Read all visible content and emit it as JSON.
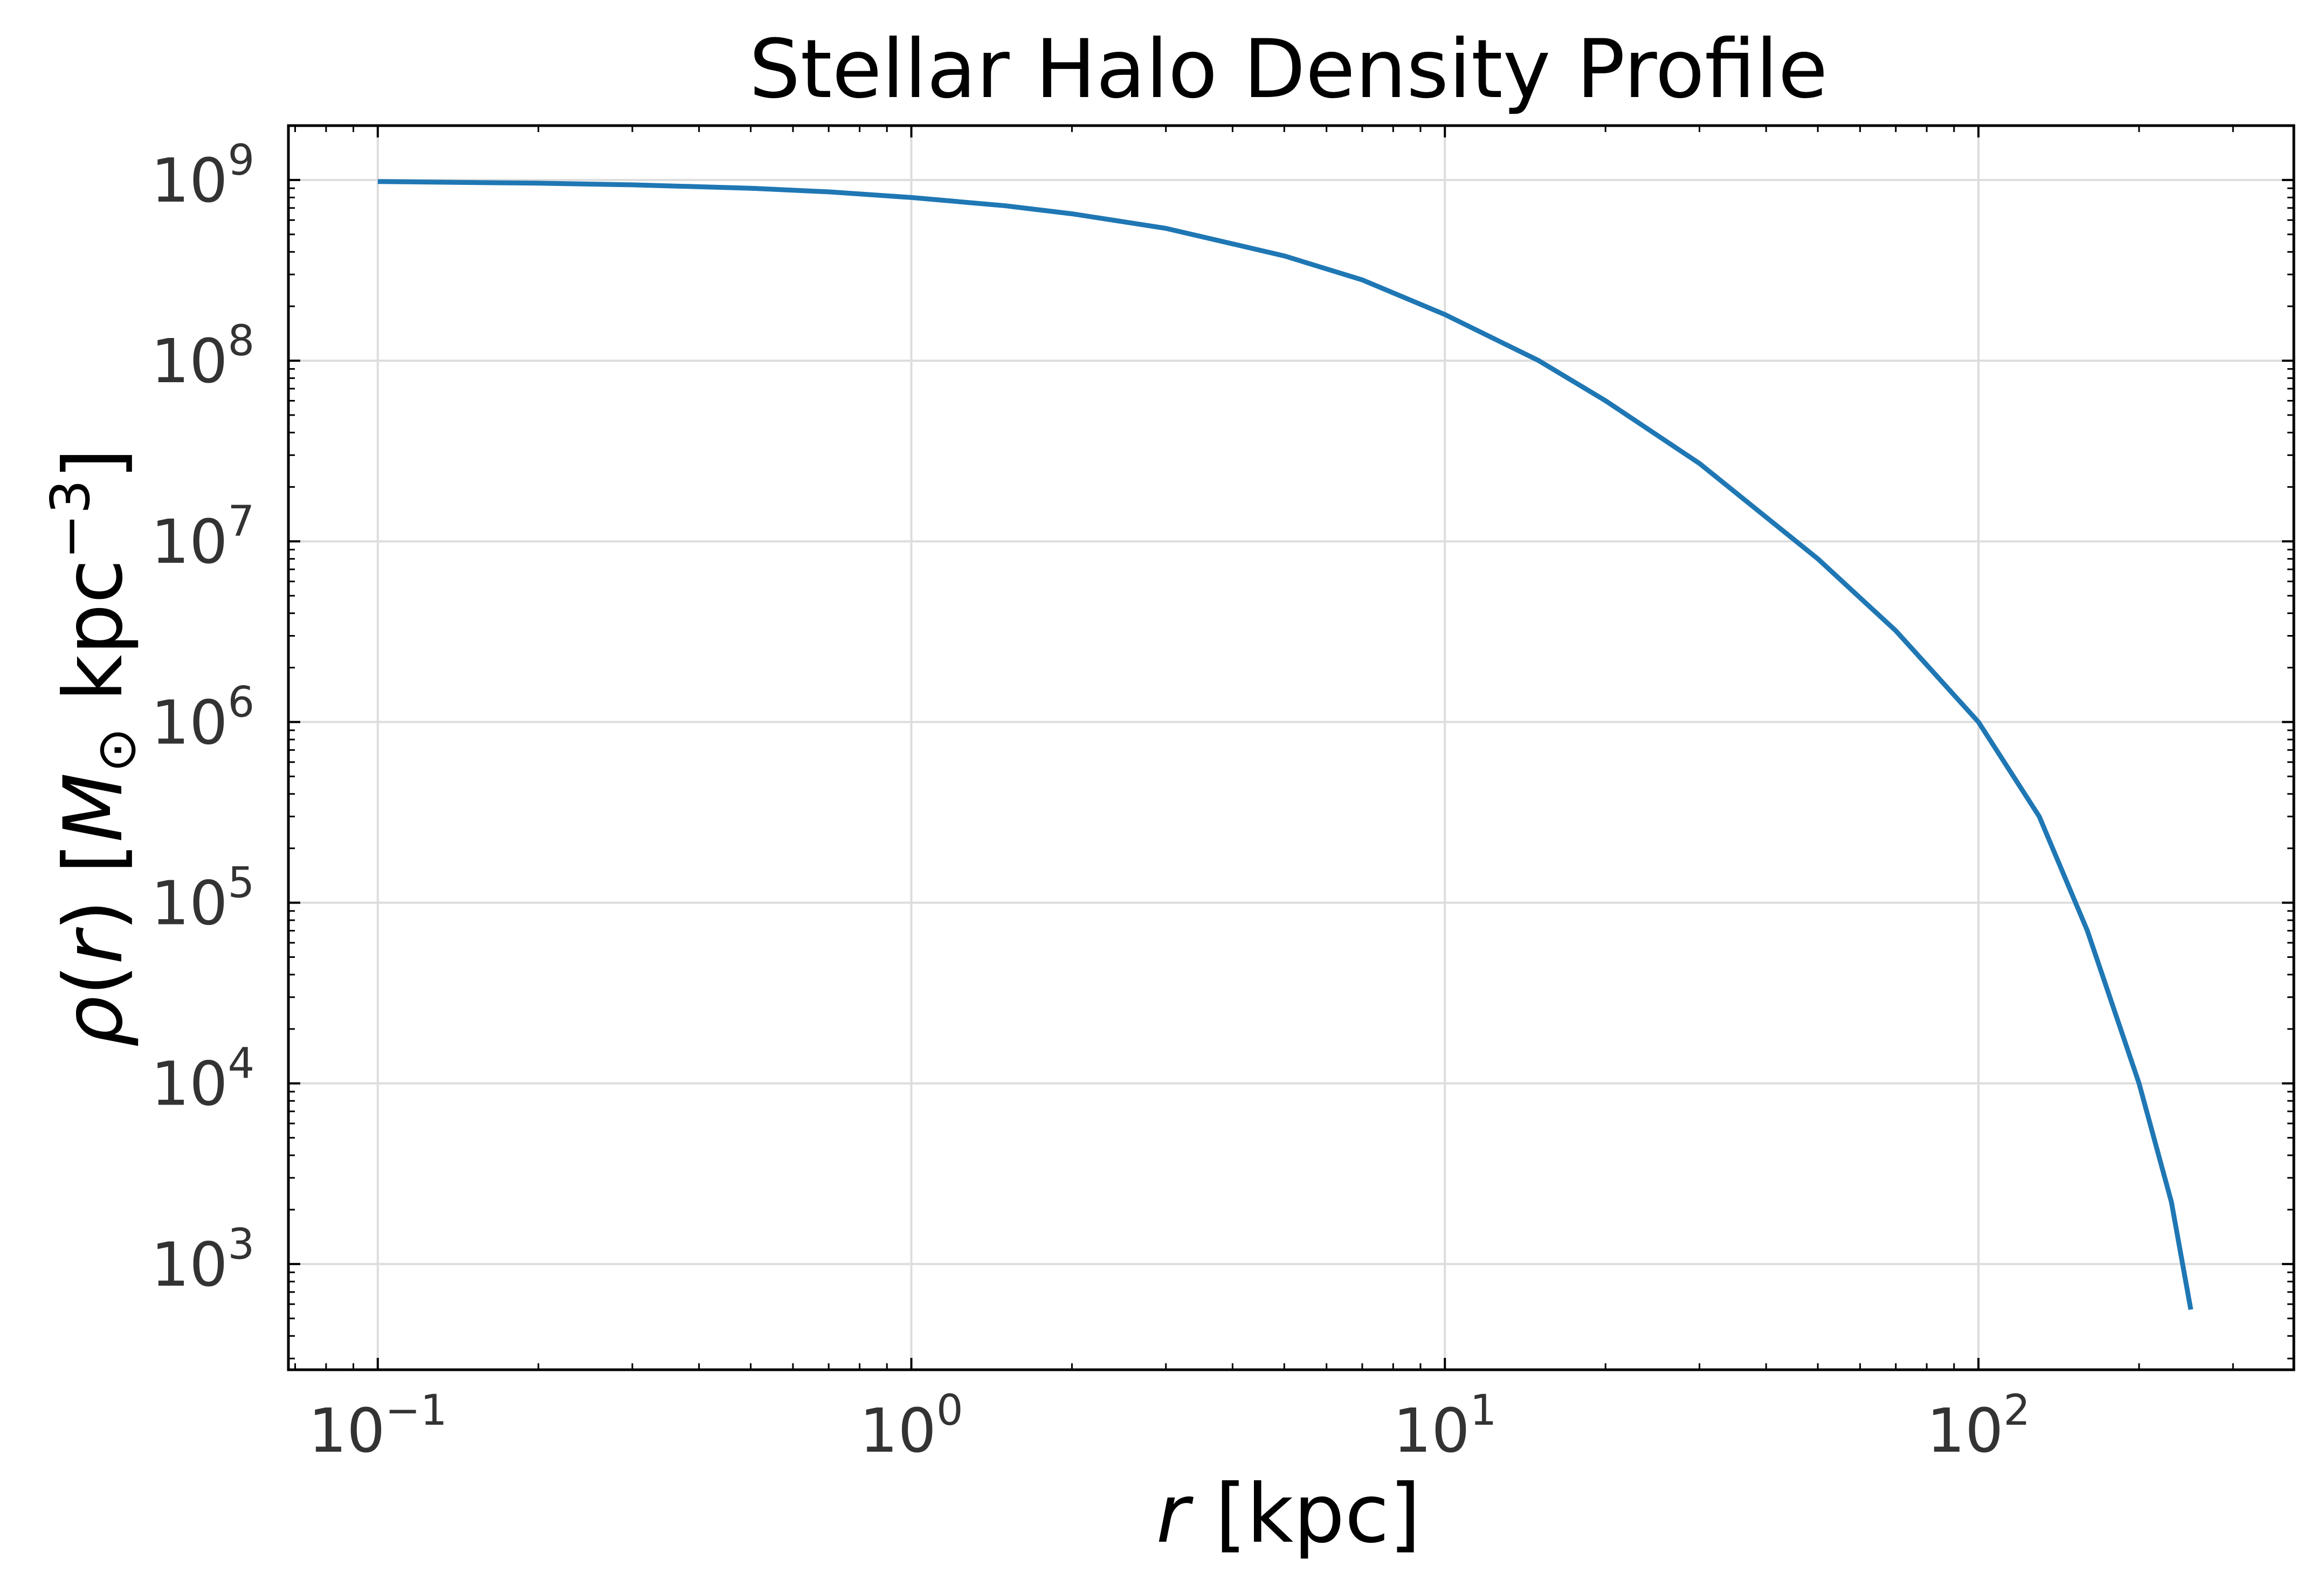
{
  "chart_data": {
    "type": "line",
    "title": "Stellar Halo Density Profile",
    "xlabel": "r [kpc]",
    "ylabel": "ρ(r) [M⊙ kpc⁻³]",
    "xscale": "log",
    "yscale": "log",
    "xlim": [
      0.068,
      390
    ],
    "ylim": [
      260,
      2000000000
    ],
    "grid": true,
    "legend": "none",
    "colors": {
      "line": "#1f77b4",
      "grid": "#dddddd",
      "axes": "#000000",
      "tick_label": "#333333"
    },
    "x_ticks": [
      {
        "value": 0.1,
        "base": "10",
        "exp": "−1"
      },
      {
        "value": 1,
        "base": "10",
        "exp": "0"
      },
      {
        "value": 10,
        "base": "10",
        "exp": "1"
      },
      {
        "value": 100,
        "base": "10",
        "exp": "2"
      }
    ],
    "y_ticks": [
      {
        "value": 1000,
        "base": "10",
        "exp": "3"
      },
      {
        "value": 10000,
        "base": "10",
        "exp": "4"
      },
      {
        "value": 100000,
        "base": "10",
        "exp": "5"
      },
      {
        "value": 1000000,
        "base": "10",
        "exp": "6"
      },
      {
        "value": 10000000,
        "base": "10",
        "exp": "7"
      },
      {
        "value": 100000000,
        "base": "10",
        "exp": "8"
      },
      {
        "value": 1000000000,
        "base": "10",
        "exp": "9"
      }
    ],
    "series": [
      {
        "x": [
          0.1,
          0.2,
          0.3,
          0.5,
          0.7,
          1,
          1.5,
          2,
          3,
          5,
          7,
          10,
          15,
          20,
          30,
          50,
          70,
          100,
          130,
          160,
          200,
          230,
          250
        ],
        "y": [
          980000000,
          960000000,
          940000000,
          900000000,
          860000000,
          800000000,
          720000000,
          650000000,
          540000000,
          380000000,
          280000000,
          180000000,
          100000000,
          60000000,
          27000000,
          8000000,
          3200000,
          1000000,
          300000,
          70000,
          10000,
          2200,
          560
        ]
      }
    ]
  }
}
